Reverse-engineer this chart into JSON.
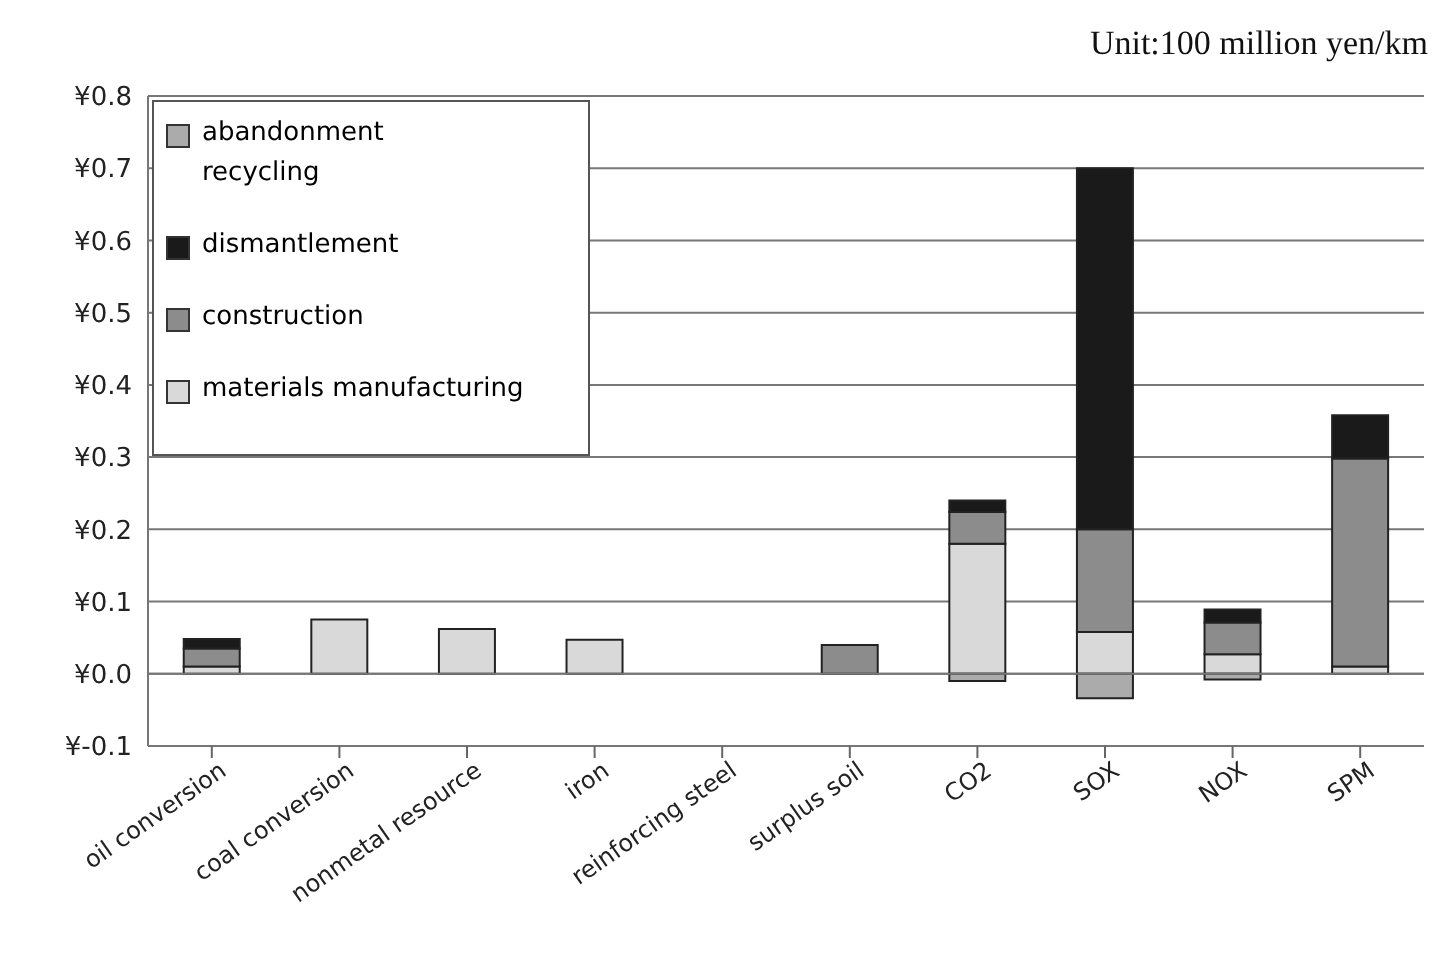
{
  "chart_data": {
    "type": "bar",
    "stacked": true,
    "ylabel": "Unit:100 million yen/km",
    "categories": [
      "oil conversion",
      "coal conversion",
      "nonmetal resource",
      "iron",
      "reinforcing steel",
      "surplus soil",
      "CO2",
      "SOX",
      "NOX",
      "SPM"
    ],
    "series": [
      {
        "name": "materials manufacturing",
        "color": "#d9d9d9",
        "values": [
          0.01,
          0.075,
          0.062,
          0.047,
          null,
          null,
          0.18,
          0.058,
          0.027,
          0.01
        ]
      },
      {
        "name": "construction",
        "color": "#8c8c8c",
        "values": [
          0.025,
          null,
          null,
          null,
          null,
          0.04,
          0.044,
          0.142,
          0.044,
          0.288
        ]
      },
      {
        "name": "dismantlement",
        "color": "#1a1a1a",
        "values": [
          0.013,
          null,
          null,
          null,
          null,
          null,
          0.016,
          0.5,
          0.018,
          0.06
        ]
      },
      {
        "name": "abandonment recycling",
        "color": "#ababab",
        "values": [
          null,
          null,
          null,
          null,
          null,
          null,
          -0.01,
          -0.034,
          -0.008,
          null
        ]
      }
    ],
    "ylim": [
      -0.1,
      0.8
    ],
    "yticks": [
      {
        "value": -0.1,
        "label": "¥-0.1"
      },
      {
        "value": 0,
        "label": "¥0.0"
      },
      {
        "value": 0.1,
        "label": "¥0.1"
      },
      {
        "value": 0.2,
        "label": "¥0.2"
      },
      {
        "value": 0.3,
        "label": "¥0.3"
      },
      {
        "value": 0.4,
        "label": "¥0.4"
      },
      {
        "value": 0.5,
        "label": "¥0.5"
      },
      {
        "value": 0.6,
        "label": "¥0.6"
      },
      {
        "value": 0.7,
        "label": "¥0.7"
      },
      {
        "value": 0.8,
        "label": "¥0.8"
      }
    ],
    "grid": "y",
    "legend": "top left"
  }
}
